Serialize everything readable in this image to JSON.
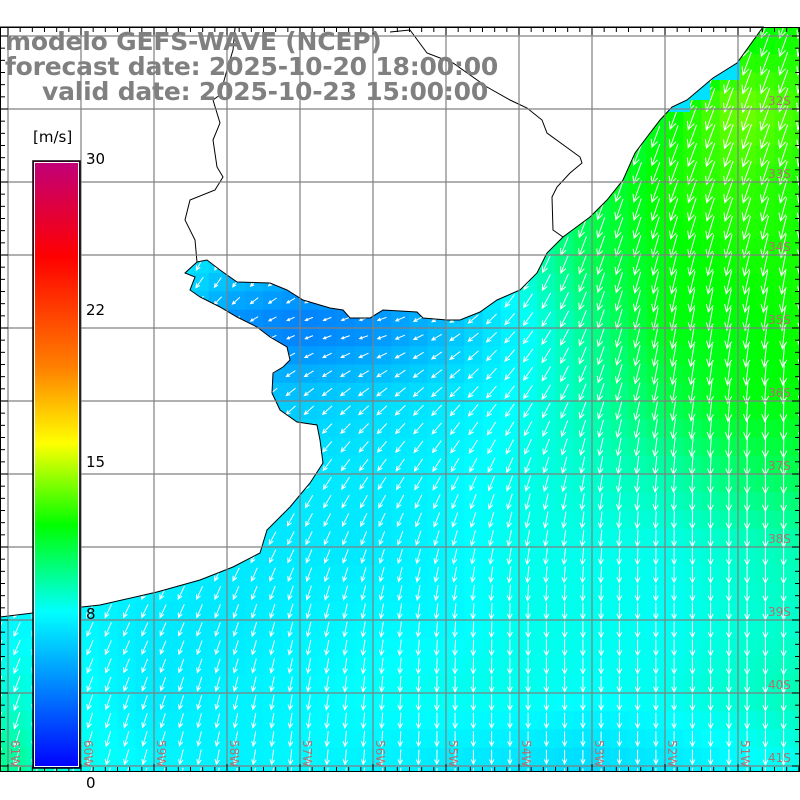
{
  "title": {
    "line1": "modelo GEFS-WAVE (NCEP)",
    "line2": "forecast date: 2025-10-20 18:00:00",
    "line3": "valid date: 2025-10-23 15:00:00"
  },
  "colorbar": {
    "unit": "[m/s]",
    "labels": [
      "30",
      "22",
      "15",
      "8",
      "0"
    ],
    "stops": [
      {
        "frac": 0.0,
        "color": "#c0007a"
      },
      {
        "frac": 0.158,
        "color": "#ff0000"
      },
      {
        "frac": 0.34,
        "color": "#ff8000"
      },
      {
        "frac": 0.465,
        "color": "#ffff00"
      },
      {
        "frac": 0.6,
        "color": "#00ff00"
      },
      {
        "frac": 0.743,
        "color": "#00ffff"
      },
      {
        "frac": 1.0,
        "color": "#0000ff"
      }
    ]
  },
  "axes": {
    "lon_labels": [
      "61W",
      "60W",
      "59W",
      "58W",
      "57W",
      "56W",
      "55W",
      "54W",
      "53W",
      "52W",
      "51W"
    ],
    "lat_labels": [
      "32S",
      "33S",
      "34S",
      "35S",
      "36S",
      "37S",
      "38S",
      "39S",
      "40S",
      "41S"
    ]
  },
  "colors": {
    "land": "#ffffff",
    "coast": "#000000",
    "grid": "#808080",
    "axis_label": "#b07070",
    "arrow": "#ffffff",
    "lagoon": "#00e0ff"
  },
  "wind_field": {
    "units": "m/s",
    "lons": [
      -61,
      -60,
      -59,
      -58,
      -57,
      -56,
      -55,
      -54,
      -53,
      -52,
      -51,
      -50
    ],
    "lats": [
      -31,
      -32,
      -33,
      -34,
      -35,
      -36,
      -37,
      -38,
      -39,
      -40,
      -41,
      -42
    ],
    "speed": [
      [
        8,
        8,
        8,
        8,
        8,
        8,
        8,
        8,
        8,
        9,
        12,
        12.5
      ],
      [
        8,
        8,
        8,
        8,
        8,
        8,
        8,
        8.3,
        9.5,
        12,
        14,
        13
      ],
      [
        8,
        8,
        8,
        8,
        8,
        8,
        8,
        9,
        11,
        12.5,
        13,
        12.5
      ],
      [
        8,
        8,
        8,
        7,
        6,
        6,
        7,
        9,
        11,
        12,
        12.5,
        12.5
      ],
      [
        8,
        8,
        8,
        4.5,
        4,
        4.5,
        6,
        8,
        10,
        12,
        12,
        12.5
      ],
      [
        8,
        8,
        8,
        6.5,
        6.5,
        7,
        7.5,
        8.3,
        9.5,
        11,
        12,
        12
      ],
      [
        8,
        8,
        8,
        7,
        7.5,
        7.5,
        8,
        8.5,
        9,
        9.5,
        10.5,
        11
      ],
      [
        8,
        8,
        8,
        7.5,
        7.5,
        7.5,
        8,
        8.5,
        8.5,
        8.5,
        9,
        9.5
      ],
      [
        8,
        8,
        7.5,
        7.5,
        7.8,
        8,
        8,
        8.5,
        8.5,
        8.3,
        8.8,
        9
      ],
      [
        8.8,
        8.3,
        7.5,
        7.8,
        8,
        8.3,
        8.5,
        8.5,
        8.3,
        8.5,
        9,
        9.5
      ],
      [
        10,
        8.5,
        8,
        7.8,
        8,
        7.8,
        7.5,
        7.3,
        7,
        7.5,
        8,
        8.5
      ],
      [
        10,
        8.5,
        8,
        7.8,
        8,
        7.8,
        7.5,
        7.3,
        7,
        7.5,
        8,
        8.5
      ]
    ],
    "direction_to_deg": [
      [
        215,
        215,
        215,
        215,
        215,
        215,
        215,
        210,
        205,
        200,
        200,
        200
      ],
      [
        215,
        215,
        215,
        215,
        215,
        215,
        215,
        210,
        205,
        200,
        200,
        200
      ],
      [
        215,
        215,
        215,
        215,
        215,
        215,
        210,
        205,
        200,
        200,
        200,
        195
      ],
      [
        215,
        215,
        215,
        200,
        230,
        235,
        220,
        205,
        200,
        195,
        195,
        190
      ],
      [
        215,
        215,
        215,
        240,
        250,
        255,
        240,
        220,
        200,
        190,
        190,
        185
      ],
      [
        215,
        215,
        215,
        225,
        230,
        230,
        225,
        215,
        200,
        190,
        185,
        180
      ],
      [
        215,
        215,
        215,
        215,
        215,
        215,
        210,
        200,
        190,
        185,
        180,
        180
      ],
      [
        210,
        210,
        210,
        210,
        205,
        200,
        195,
        190,
        185,
        180,
        180,
        180
      ],
      [
        205,
        205,
        205,
        200,
        195,
        190,
        185,
        180,
        180,
        180,
        180,
        180
      ],
      [
        200,
        200,
        200,
        195,
        190,
        185,
        180,
        180,
        180,
        180,
        180,
        180
      ],
      [
        195,
        195,
        195,
        190,
        185,
        185,
        180,
        180,
        180,
        180,
        180,
        180
      ],
      [
        195,
        195,
        195,
        190,
        185,
        185,
        180,
        180,
        180,
        180,
        180,
        180
      ]
    ]
  }
}
